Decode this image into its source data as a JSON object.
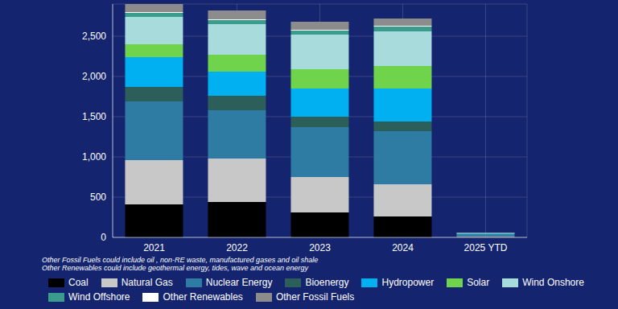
{
  "chart_data": {
    "type": "bar",
    "stacked": true,
    "grid": true,
    "categories": [
      "2021",
      "2022",
      "2023",
      "2024",
      "2025 YTD"
    ],
    "ylim": [
      0,
      2900
    ],
    "yticks": [
      0,
      500,
      {
        "value": 1000,
        "label": "1,000"
      },
      {
        "value": 1500,
        "label": "1,500"
      },
      {
        "value": 2000,
        "label": "2,000"
      },
      {
        "value": 2500,
        "label": "2,500"
      }
    ],
    "annotations": [
      "Other Fossil Fuels could include oil , non-RE waste, manufactured gases and oil shale",
      "Other Renewables could include geothermal energy, tides, wave and ocean energy"
    ],
    "series": [
      {
        "name": "Coal",
        "color": "#000000",
        "values": [
          410,
          440,
          310,
          260,
          5
        ]
      },
      {
        "name": "Natural Gas",
        "color": "#c8c8c8",
        "values": [
          550,
          540,
          440,
          400,
          10
        ]
      },
      {
        "name": "Nuclear Energy",
        "color": "#2e7ca3",
        "values": [
          730,
          600,
          620,
          660,
          15
        ]
      },
      {
        "name": "Bioenergy",
        "color": "#2d5f5a",
        "values": [
          180,
          180,
          130,
          120,
          3
        ]
      },
      {
        "name": "Hydropower",
        "color": "#00b0f0",
        "values": [
          370,
          300,
          350,
          410,
          8
        ]
      },
      {
        "name": "Solar",
        "color": "#6fd34b",
        "values": [
          160,
          210,
          240,
          280,
          5
        ]
      },
      {
        "name": "Wind Onshore",
        "color": "#a8dcdc",
        "values": [
          340,
          380,
          430,
          430,
          10
        ]
      },
      {
        "name": "Wind Offshore",
        "color": "#3a9c8c",
        "values": [
          50,
          50,
          50,
          60,
          2
        ]
      },
      {
        "name": "Other Renewables",
        "color": "#ffffff",
        "values": [
          10,
          10,
          10,
          10,
          1
        ]
      },
      {
        "name": "Other Fossil Fuels",
        "color": "#8c8c8c",
        "values": [
          100,
          110,
          100,
          90,
          2
        ]
      }
    ]
  }
}
